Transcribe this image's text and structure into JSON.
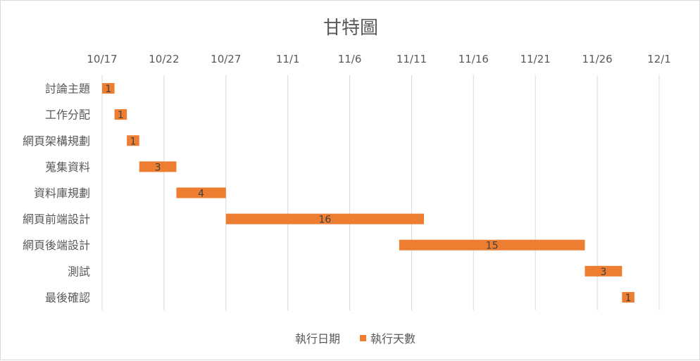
{
  "chart_data": {
    "type": "bar",
    "orientation": "horizontal",
    "stacked": true,
    "title": "甘特圖",
    "x_axis_position": "top",
    "x_ticks": [
      "10/17",
      "10/22",
      "10/27",
      "11/1",
      "11/6",
      "11/11",
      "11/16",
      "11/21",
      "11/26",
      "12/1"
    ],
    "x_range": [
      "2024-10-17",
      "2024-12-01"
    ],
    "grid": true,
    "categories": [
      "討論主題",
      "工作分配",
      "網頁架構規劃",
      "蒐集資料",
      "資料庫規劃",
      "網頁前端設計",
      "網頁後端設計",
      "測試",
      "最後確認"
    ],
    "series": [
      {
        "name": "執行日期",
        "visible": false,
        "values": [
          "2024-10-17",
          "2024-10-18",
          "2024-10-19",
          "2024-10-20",
          "2024-10-23",
          "2024-10-27",
          "2024-11-10",
          "2024-11-25",
          "2024-11-28"
        ]
      },
      {
        "name": "執行天數",
        "color": "#ED7D31",
        "values": [
          1,
          1,
          1,
          3,
          4,
          16,
          15,
          3,
          1
        ]
      }
    ],
    "legend": {
      "position": "bottom",
      "entries": [
        "執行日期",
        "執行天數"
      ]
    }
  }
}
